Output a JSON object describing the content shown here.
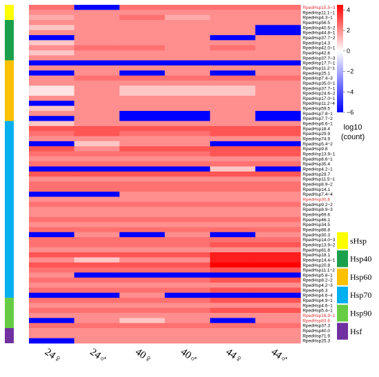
{
  "chart_data": {
    "type": "heatmap",
    "columns": [
      "24♀",
      "24♂",
      "40♀",
      "40♂",
      "44♀",
      "44♂"
    ],
    "rows": [
      "RpedHsp15.5−3",
      "RpedHsp11.1−1",
      "RpedHsp4.3−1",
      "RpedHsp56.5",
      "RpedHsp40.5−2",
      "RpedHsp44.8−1",
      "RpedHsp37.7−2",
      "RpedHsp14.3",
      "RpedHsp42.0−1",
      "RpedHsp42.6",
      "RpedHsp37.7−3",
      "RpedHsp17.7−1",
      "RpedHsp11.2−1",
      "RpedHsp25.1",
      "RpedHsp7.4−3",
      "RpedHsp35.0−1",
      "RpedHsp37.7−1",
      "RpedHsp24.6−2",
      "RpedHsp17.0−1",
      "RpedHsp11.2−4",
      "RpedHsp59.5",
      "RpedHsp7.8−1",
      "RpedHsp7.7−2",
      "RpedHsp6.6−1",
      "RpedHsp18.4",
      "RpedHsp29.9",
      "RpedHsp74.9",
      "RpedHsp5.4−2",
      "RpedHsp9.8",
      "RpedHsp13.9−1",
      "RpedHsp8.6−1",
      "RpedHsp35.4",
      "RpedHsp4.2−1",
      "RpedHsp29.7",
      "RpedHsp11.5−1",
      "RpedHsp8.9−2",
      "RpedHsp14.1",
      "RpedHsp7.4−4",
      "RpedHsp30.8",
      "RpedHsp9.2−2",
      "RpedHsp8.9−3",
      "RpedHsp69.6",
      "RpedHsp46.1",
      "RpedHsp34.5",
      "RpedHsp88.8",
      "RpedHsp30.3",
      "RpedHsp14.0−3",
      "RpedHsp13.9−2",
      "RpedHsp81.8",
      "RpedHsp18.1",
      "RpedHsp14.4−1",
      "RpedHsp20.8",
      "RpedHsp11.1−2",
      "RpedHsp5.8−1",
      "RpedHsp8.2−2",
      "RpedHsp4.2−3",
      "RpedHsp6.3",
      "RpedHsp4.6−4",
      "RpedHsp4.9−1",
      "RpedHsp4.6−1",
      "RpedHsp5.4−1",
      "RpedHsp16.9−1",
      "RpedHsp83.6",
      "RpedHsp37.3",
      "RpedHsp40.0",
      "RpedHsp71.9",
      "RpedHsp25.3"
    ],
    "highlighted_rows": [
      "RpedHsp15.5−3",
      "RpedHsp30.8",
      "RpedHsp16.9−1",
      "RpedHsp83.6"
    ],
    "values": [
      [
        2.5,
        -6,
        2.5,
        2.5,
        2.5,
        2.5
      ],
      [
        2,
        2,
        2,
        2,
        2,
        2
      ],
      [
        1.5,
        2,
        2.5,
        1.5,
        2,
        2
      ],
      [
        2,
        2,
        2,
        2,
        2,
        2
      ],
      [
        1,
        2,
        2,
        2,
        2,
        -6
      ],
      [
        2,
        2,
        2,
        2,
        2,
        -6
      ],
      [
        -6,
        2,
        2,
        2,
        -6,
        2
      ],
      [
        1,
        2,
        2,
        2,
        2,
        2
      ],
      [
        2,
        2.5,
        2.5,
        2,
        2.5,
        2
      ],
      [
        1,
        2,
        2,
        2,
        2,
        2
      ],
      [
        2,
        2,
        2,
        2,
        2,
        2
      ],
      [
        -6,
        -6,
        -6,
        -6,
        -6,
        -6
      ],
      [
        2,
        2,
        2,
        2,
        2,
        2
      ],
      [
        -6,
        2,
        -6,
        2,
        -6,
        2
      ],
      [
        2,
        2.5,
        2.5,
        2.5,
        2.5,
        2.5
      ],
      [
        2,
        2,
        2,
        2,
        2,
        2
      ],
      [
        0.5,
        2,
        1,
        1,
        1,
        2
      ],
      [
        0.5,
        2,
        1,
        1,
        1,
        2
      ],
      [
        2,
        2,
        2,
        2,
        2,
        2
      ],
      [
        -6,
        2,
        2,
        2,
        2,
        2
      ],
      [
        1,
        2,
        2,
        2,
        2,
        2
      ],
      [
        2,
        2,
        -6,
        -6,
        2,
        -6
      ],
      [
        -6,
        2,
        -6,
        -6,
        2,
        -6
      ],
      [
        1,
        2,
        2,
        2,
        2,
        2
      ],
      [
        3,
        3,
        3,
        3,
        3,
        3
      ],
      [
        2.5,
        3,
        2.5,
        2.5,
        3,
        3
      ],
      [
        2,
        2,
        2,
        2,
        2,
        2
      ],
      [
        -6,
        1,
        2,
        2,
        -6,
        -6
      ],
      [
        3,
        2,
        3,
        3,
        3,
        3
      ],
      [
        2.5,
        2.5,
        2.5,
        2.5,
        3,
        3
      ],
      [
        2,
        2,
        2,
        2,
        2,
        2
      ],
      [
        2.5,
        2.5,
        2.5,
        2.5,
        2.5,
        2.5
      ],
      [
        -6,
        -6,
        -6,
        -6,
        1,
        -6
      ],
      [
        3,
        3,
        3,
        3,
        3,
        3
      ],
      [
        2,
        2,
        2,
        2,
        2,
        2
      ],
      [
        2.5,
        2.5,
        2.5,
        2.5,
        2.5,
        2.5
      ],
      [
        2.5,
        2.5,
        2.5,
        2.5,
        2.5,
        2.5
      ],
      [
        -6,
        -6,
        2,
        2,
        2,
        2
      ],
      [
        2,
        2,
        2,
        2,
        2,
        2
      ],
      [
        2.5,
        2.5,
        2.5,
        2.5,
        2.5,
        2.5
      ],
      [
        2,
        2,
        2,
        2,
        2,
        2
      ],
      [
        2,
        2,
        2,
        2,
        2,
        2
      ],
      [
        2.5,
        2.5,
        2.5,
        2.5,
        2.5,
        2.5
      ],
      [
        2,
        2,
        2,
        2,
        2,
        2
      ],
      [
        2.5,
        2.5,
        2.5,
        2.5,
        2.5,
        2.5
      ],
      [
        -6,
        2,
        -6,
        2,
        -6,
        2
      ],
      [
        2.5,
        2.5,
        2.5,
        2.5,
        2.5,
        2.5
      ],
      [
        2.5,
        2.5,
        2.5,
        2.5,
        3,
        3
      ],
      [
        2,
        2,
        2,
        2,
        2,
        2
      ],
      [
        3,
        3,
        3,
        3,
        4,
        4
      ],
      [
        2,
        1,
        2,
        2,
        4,
        4
      ],
      [
        3,
        3,
        3,
        3,
        4.5,
        4.5
      ],
      [
        2.5,
        2.5,
        2.5,
        2.5,
        3,
        3
      ],
      [
        2,
        -6,
        -6,
        -6,
        -6,
        -6
      ],
      [
        2.5,
        2.5,
        2.5,
        2.5,
        3,
        3
      ],
      [
        2,
        2,
        2,
        2,
        2,
        2
      ],
      [
        2.5,
        2.5,
        2.5,
        2.5,
        3,
        3
      ],
      [
        -6,
        -6,
        2,
        -6,
        -6,
        -6
      ],
      [
        2.5,
        2.5,
        2.5,
        2.5,
        3,
        3
      ],
      [
        2,
        2,
        2,
        2,
        2,
        2
      ],
      [
        2.5,
        2.5,
        2.5,
        2.5,
        3,
        3
      ],
      [
        2,
        2,
        2,
        2,
        2,
        2
      ],
      [
        -6,
        2,
        1,
        2,
        -6,
        2
      ],
      [
        2.5,
        2.5,
        2.5,
        2.5,
        2.5,
        2.5
      ],
      [
        2,
        2,
        2,
        2,
        2,
        2
      ],
      [
        2,
        2,
        2,
        2,
        2,
        2
      ],
      [
        -6,
        2,
        2,
        2,
        2,
        2
      ]
    ],
    "colorbar": {
      "min": -6,
      "max": 4.5,
      "ticks": [
        4,
        2,
        0,
        -2,
        -4,
        -6
      ],
      "title_lines": [
        "log10",
        "(count)"
      ]
    },
    "colors": {
      "low": "#0000ff",
      "mid": "#ffffff",
      "high": "#ff0000",
      "highlight_text": "#e03030"
    },
    "families": [
      {
        "name": "sHsp",
        "color": "#ffff00",
        "start": 0,
        "end": 3
      },
      {
        "name": "Hsp40",
        "color": "#1aa04a",
        "start": 3,
        "end": 11
      },
      {
        "name": "Hsp60",
        "color": "#ffc000",
        "start": 11,
        "end": 23
      },
      {
        "name": "Hsp70",
        "color": "#00b0f0",
        "start": 23,
        "end": 58
      },
      {
        "name": "Hsp90",
        "color": "#66cc44",
        "start": 58,
        "end": 64
      },
      {
        "name": "Hsf",
        "color": "#7030a0",
        "start": 64,
        "end": 67
      }
    ]
  }
}
